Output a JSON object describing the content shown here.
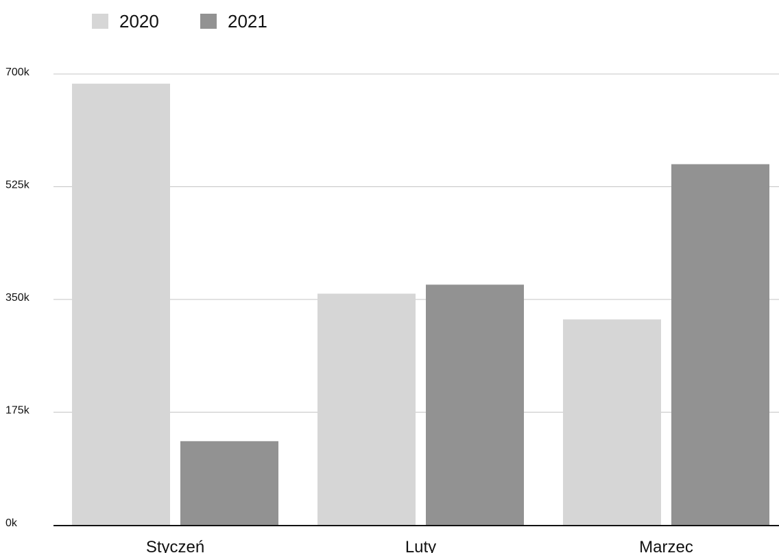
{
  "chart_data": {
    "type": "bar",
    "categories": [
      "Styczeń",
      "Luty",
      "Marzec"
    ],
    "series": [
      {
        "name": "2020",
        "values": [
          685000,
          359000,
          319000
        ],
        "color": "#d6d6d6"
      },
      {
        "name": "2021",
        "values": [
          130000,
          373000,
          560000
        ],
        "color": "#929292"
      }
    ],
    "y_ticks": [
      {
        "value": 0,
        "label": "0k"
      },
      {
        "value": 175000,
        "label": "175k"
      },
      {
        "value": 350000,
        "label": "350k"
      },
      {
        "value": 525000,
        "label": "525k"
      },
      {
        "value": 700000,
        "label": "700k"
      }
    ],
    "ylim": [
      0,
      700000
    ],
    "grid": true,
    "gridline_color": "#c4c4c4",
    "axis_color": "#111111",
    "legend_position": "top-left",
    "title": "",
    "xlabel": "",
    "ylabel": ""
  }
}
